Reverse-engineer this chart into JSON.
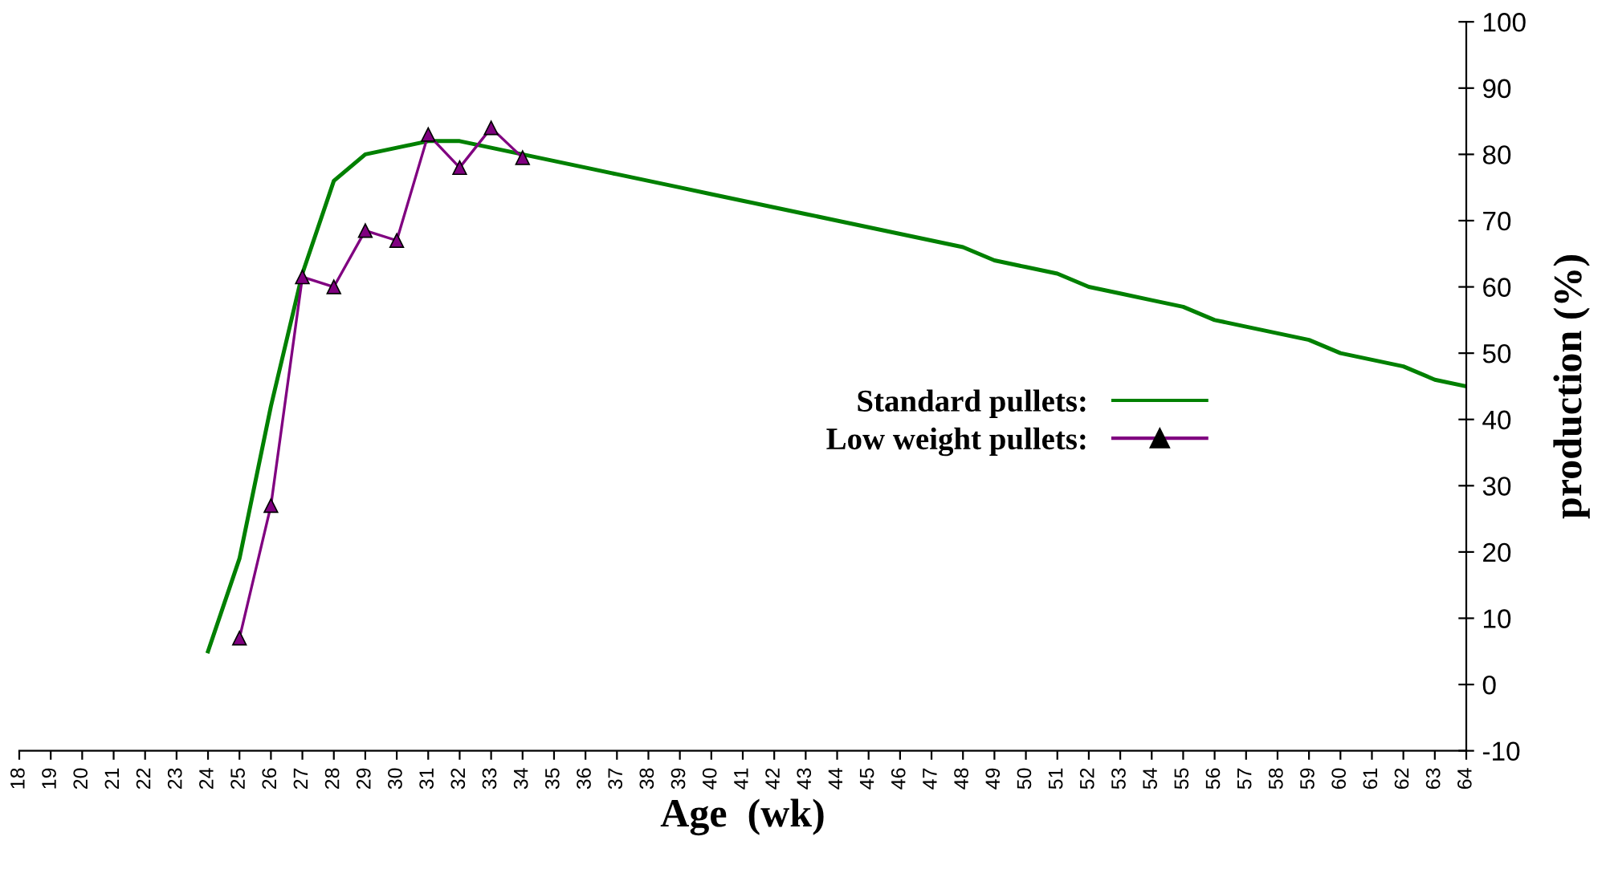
{
  "chart_data": {
    "type": "line",
    "xlabel": "Age  (wk)",
    "ylabel": "production (%)",
    "categories": [
      "18",
      "19",
      "20",
      "21",
      "22",
      "23",
      "24",
      "25",
      "26",
      "27",
      "28",
      "29",
      "30",
      "31",
      "32",
      "33",
      "34",
      "35",
      "36",
      "37",
      "38",
      "39",
      "40",
      "41",
      "42",
      "43",
      "44",
      "45",
      "46",
      "47",
      "48",
      "49",
      "50",
      "51",
      "52",
      "53",
      "54",
      "55",
      "56",
      "57",
      "58",
      "59",
      "60",
      "61",
      "62",
      "63",
      "64"
    ],
    "series": [
      {
        "name": "Standard pullets:",
        "color": "#008000",
        "marker": "none",
        "values": [
          null,
          null,
          null,
          null,
          null,
          null,
          5,
          19,
          42,
          62,
          76,
          80,
          81,
          82,
          82,
          81,
          80,
          79,
          78,
          77,
          76,
          75,
          74,
          73,
          72,
          71,
          70,
          69,
          68,
          67,
          66,
          64,
          63,
          62,
          60,
          59,
          58,
          57,
          55,
          54,
          53,
          52,
          50,
          49,
          48,
          46,
          45
        ]
      },
      {
        "name": "Low weight pullets:",
        "color": "#800080",
        "marker": "triangle",
        "values": [
          null,
          null,
          null,
          null,
          null,
          null,
          null,
          7,
          27,
          61.5,
          60,
          68.5,
          67,
          83,
          78,
          84,
          79.5,
          null,
          null,
          null,
          null,
          null,
          null,
          null,
          null,
          null,
          null,
          null,
          null,
          null,
          null,
          null,
          null,
          null,
          null,
          null,
          null,
          null,
          null,
          null,
          null,
          null,
          null,
          null,
          null,
          null,
          null
        ]
      }
    ],
    "ylim": [
      -10,
      100
    ],
    "yticks": [
      -10,
      0,
      10,
      20,
      30,
      40,
      50,
      60,
      70,
      80,
      90,
      100
    ],
    "grid": false,
    "legend": "center right"
  }
}
